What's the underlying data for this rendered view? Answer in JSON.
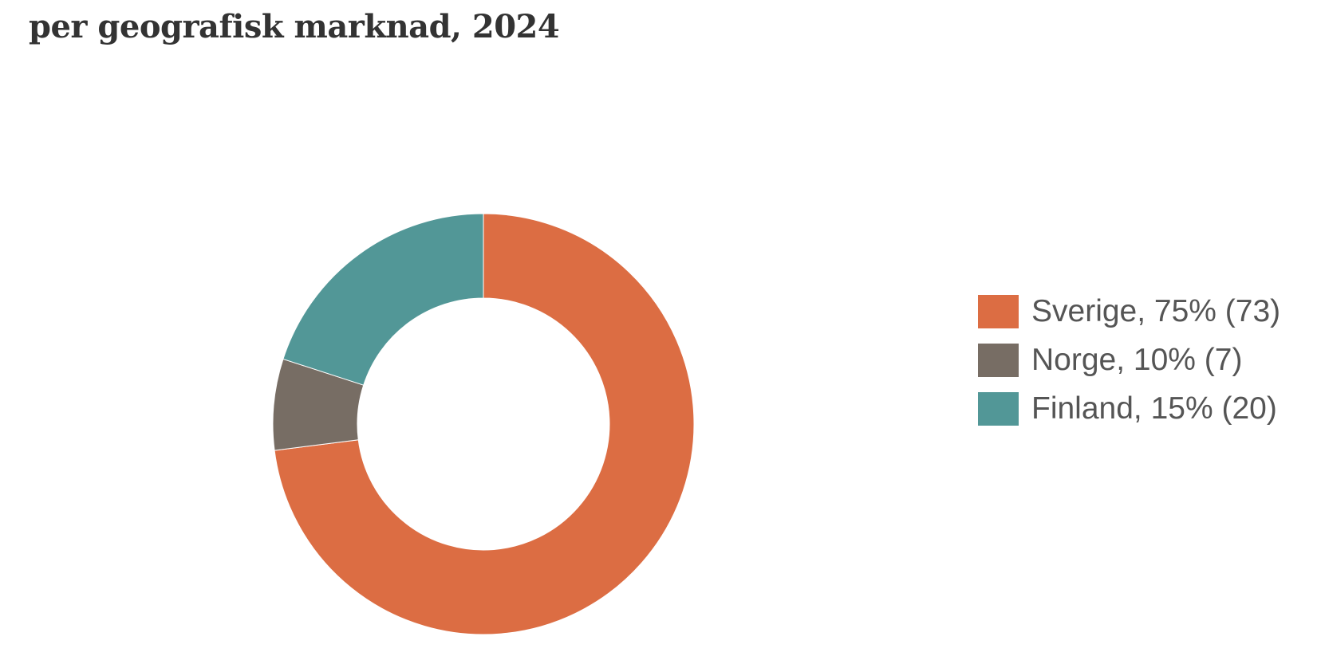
{
  "chart_data": {
    "type": "pie",
    "variant": "donut",
    "title": "per geografisk marknad, 2024",
    "slices": [
      {
        "label": "Sverige, 75% (73)",
        "name": "Sverige",
        "percent": 75,
        "value": 73,
        "color": "#dc6d43"
      },
      {
        "label": "Norge, 10% (7)",
        "name": "Norge",
        "percent": 10,
        "value": 7,
        "color": "#776d64"
      },
      {
        "label": "Finland, 15% (20)",
        "name": "Finland",
        "percent": 15,
        "value": 20,
        "color": "#529797"
      }
    ],
    "legend_position": "right"
  }
}
